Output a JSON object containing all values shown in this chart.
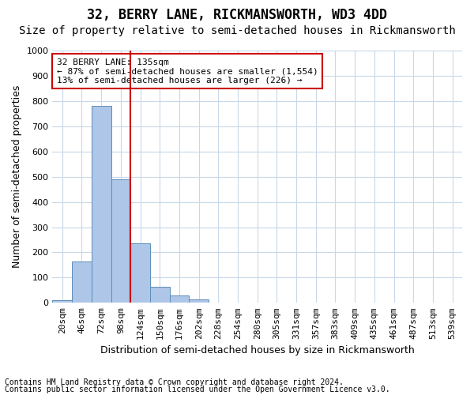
{
  "title1": "32, BERRY LANE, RICKMANSWORTH, WD3 4DD",
  "title2": "Size of property relative to semi-detached houses in Rickmansworth",
  "xlabel": "Distribution of semi-detached houses by size in Rickmansworth",
  "ylabel": "Number of semi-detached properties",
  "bar_values": [
    10,
    163,
    781,
    491,
    236,
    63,
    29,
    12,
    0,
    0,
    0,
    0,
    0,
    0,
    0,
    0,
    0,
    0,
    0,
    0,
    0
  ],
  "categories": [
    "20sqm",
    "46sqm",
    "72sqm",
    "98sqm",
    "124sqm",
    "150sqm",
    "176sqm",
    "202sqm",
    "228sqm",
    "254sqm",
    "280sqm",
    "305sqm",
    "331sqm",
    "357sqm",
    "383sqm",
    "409sqm",
    "435sqm",
    "461sqm",
    "487sqm",
    "513sqm",
    "539sqm"
  ],
  "bar_color": "#aec6e8",
  "bar_edge_color": "#5b8db8",
  "vline_x": 3.5,
  "vline_color": "#cc0000",
  "annotation_text": "32 BERRY LANE: 135sqm\n← 87% of semi-detached houses are smaller (1,554)\n13% of semi-detached houses are larger (226) →",
  "annotation_box_color": "#ffffff",
  "annotation_box_edge": "#cc0000",
  "ylim": [
    0,
    1000
  ],
  "yticks": [
    0,
    100,
    200,
    300,
    400,
    500,
    600,
    700,
    800,
    900,
    1000
  ],
  "footer1": "Contains HM Land Registry data © Crown copyright and database right 2024.",
  "footer2": "Contains public sector information licensed under the Open Government Licence v3.0.",
  "background_color": "#ffffff",
  "grid_color": "#c8d8e8",
  "title1_fontsize": 12,
  "title2_fontsize": 10,
  "axis_fontsize": 9,
  "tick_fontsize": 8,
  "footer_fontsize": 7
}
